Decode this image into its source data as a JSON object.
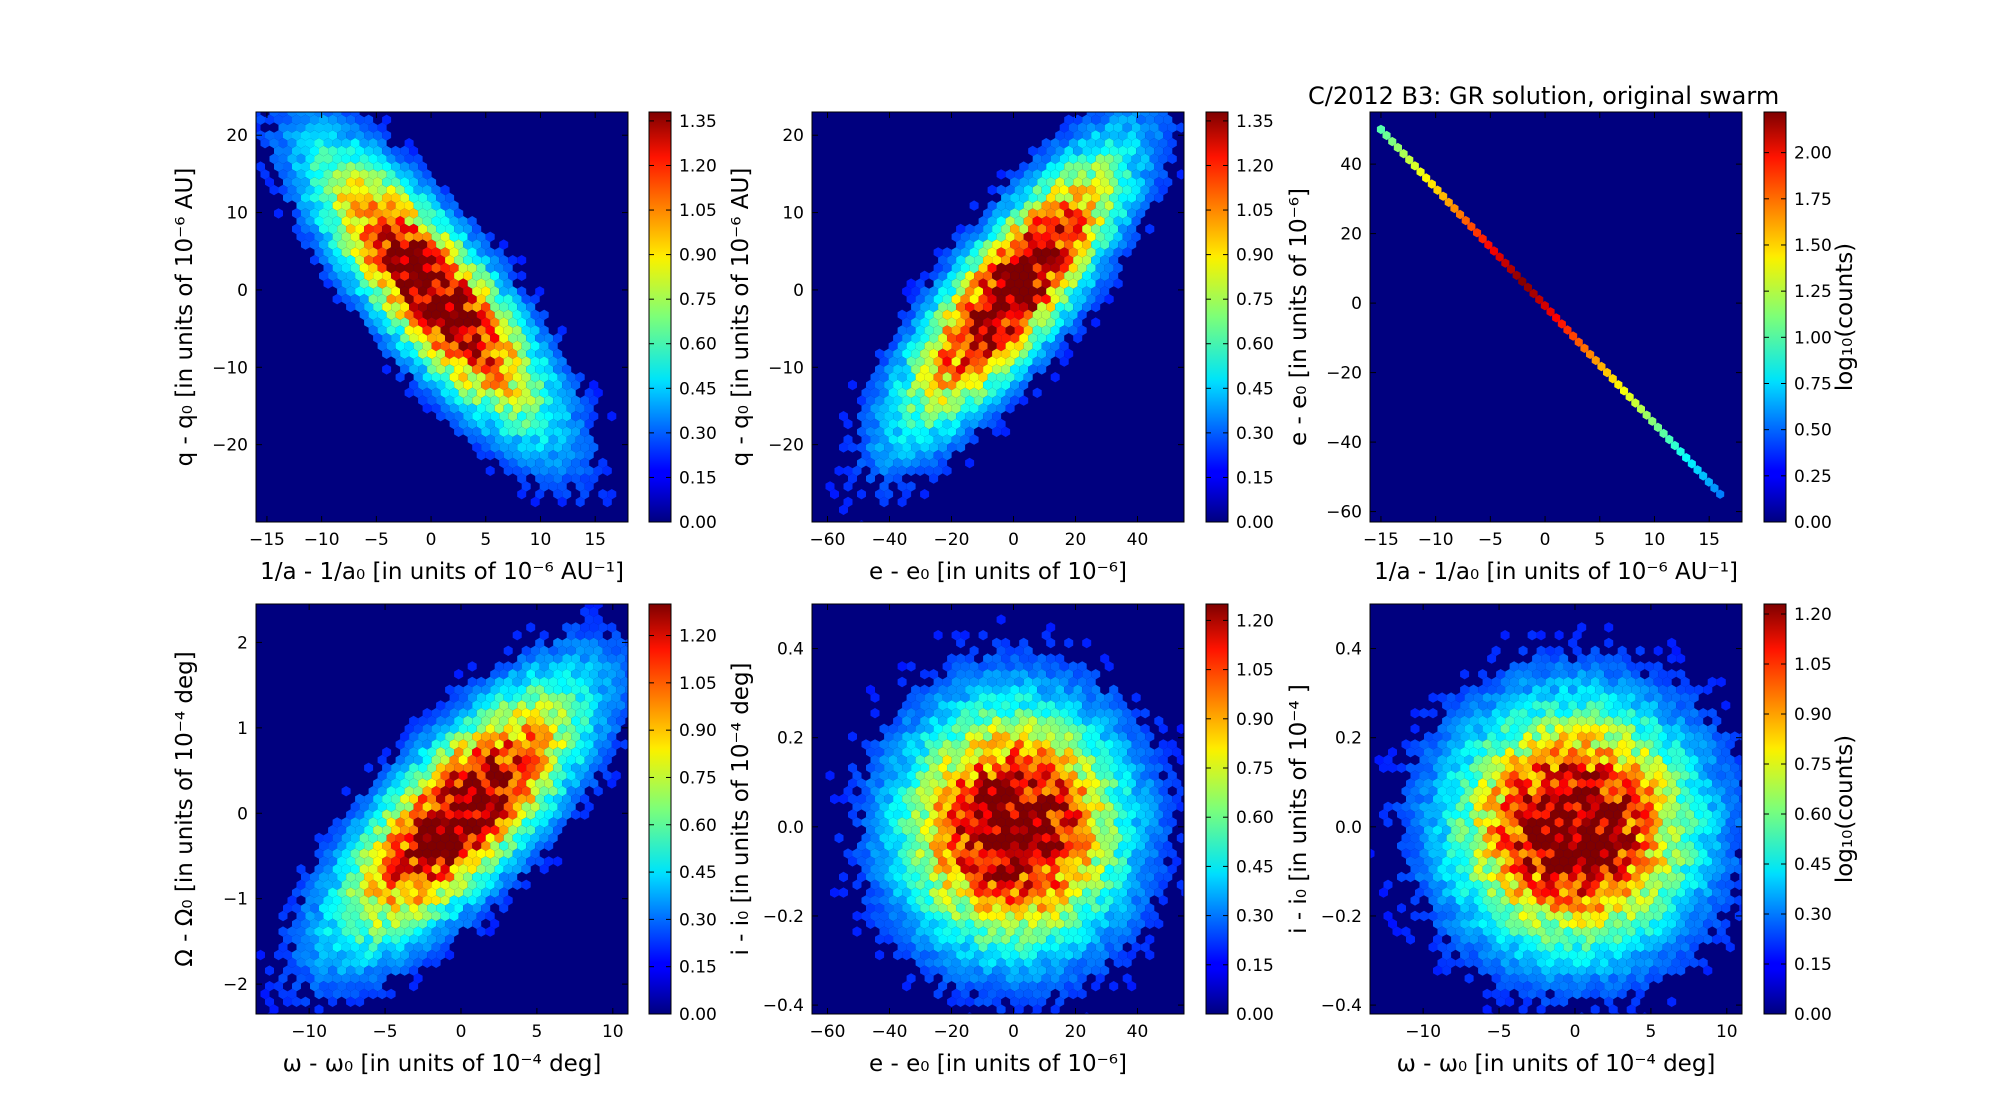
{
  "figure_title": "C/2012 B3:  GR solution, original swarm",
  "colors": {
    "background": "#00007f",
    "frame": "#000000"
  },
  "chart_data": [
    {
      "type": "heatmap",
      "panel": "top-left",
      "variant": "hexbin-density",
      "xlabel": "1/a - 1/a₀ [in units of 10⁻⁶ AU⁻¹]",
      "ylabel": "q - q₀ [in units of 10⁻⁶ AU]",
      "xlim": [
        -16,
        18
      ],
      "ylim": [
        -30,
        23
      ],
      "xticks": [
        -15,
        -10,
        -5,
        0,
        5,
        10,
        15
      ],
      "xtick_labels": [
        "−15",
        "−10",
        "−5",
        "0",
        "5",
        "10",
        "15"
      ],
      "yticks": [
        -20,
        -10,
        0,
        10,
        20
      ],
      "ytick_labels": [
        "−20",
        "−10",
        "0",
        "10",
        "20"
      ],
      "distribution": {
        "mean_x": 0,
        "mean_y": 0,
        "sd_x": 5,
        "sd_y": 8.5,
        "corr": -0.82
      },
      "colorbar": {
        "min": 0.0,
        "max": 1.38,
        "ticks": [
          "0.00",
          "0.15",
          "0.30",
          "0.45",
          "0.60",
          "0.75",
          "0.90",
          "1.05",
          "1.20",
          "1.35"
        ],
        "label": ""
      }
    },
    {
      "type": "heatmap",
      "panel": "top-middle",
      "variant": "hexbin-density",
      "xlabel": "e - e₀ [in units of 10⁻⁶]",
      "ylabel": "q - q₀ [in units of 10⁻⁶ AU]",
      "xlim": [
        -65,
        55
      ],
      "ylim": [
        -30,
        23
      ],
      "xticks": [
        -60,
        -40,
        -20,
        0,
        20,
        40
      ],
      "xtick_labels": [
        "−60",
        "−40",
        "−20",
        "0",
        "20",
        "40"
      ],
      "yticks": [
        -20,
        -10,
        0,
        10,
        20
      ],
      "ytick_labels": [
        "−20",
        "−10",
        "0",
        "10",
        "20"
      ],
      "distribution": {
        "mean_x": 0,
        "mean_y": 0,
        "sd_x": 17,
        "sd_y": 8.5,
        "corr": 0.82
      },
      "colorbar": {
        "min": 0.0,
        "max": 1.38,
        "ticks": [
          "0.00",
          "0.15",
          "0.30",
          "0.45",
          "0.60",
          "0.75",
          "0.90",
          "1.05",
          "1.20",
          "1.35"
        ],
        "label": ""
      }
    },
    {
      "type": "heatmap",
      "panel": "top-right",
      "variant": "hexbin-line",
      "xlabel": "1/a - 1/a₀ [in units of 10⁻⁶ AU⁻¹]",
      "ylabel": "e - e₀ [in units of 10⁻⁶]",
      "xlim": [
        -16,
        18
      ],
      "ylim": [
        -63,
        55
      ],
      "xticks": [
        -15,
        -10,
        -5,
        0,
        5,
        10,
        15
      ],
      "xtick_labels": [
        "−15",
        "−10",
        "−5",
        "0",
        "5",
        "10",
        "15"
      ],
      "yticks": [
        -60,
        -40,
        -20,
        0,
        20,
        40
      ],
      "ytick_labels": [
        "−60",
        "−40",
        "−20",
        "0",
        "20",
        "40"
      ],
      "line": {
        "x_start": -15,
        "y_start": 50,
        "x_end": 16,
        "y_end": -55
      },
      "colorbar": {
        "min": 0.0,
        "max": 2.22,
        "ticks": [
          "0.00",
          "0.25",
          "0.50",
          "0.75",
          "1.00",
          "1.25",
          "1.50",
          "1.75",
          "2.00"
        ],
        "label": "log₁₀(counts)"
      }
    },
    {
      "type": "heatmap",
      "panel": "bottom-left",
      "variant": "hexbin-density",
      "xlabel": "ω - ω₀ [in units of 10⁻⁴ deg]",
      "ylabel": "Ω - Ω₀ [in units of 10⁻⁴ deg]",
      "xlim": [
        -13.5,
        11
      ],
      "ylim": [
        -2.35,
        2.45
      ],
      "xticks": [
        -10,
        -5,
        0,
        5,
        10
      ],
      "xtick_labels": [
        "−10",
        "−5",
        "0",
        "5",
        "10"
      ],
      "yticks": [
        -2,
        -1,
        0,
        1,
        2
      ],
      "ytick_labels": [
        "−2",
        "−1",
        "0",
        "1",
        "2"
      ],
      "distribution": {
        "mean_x": 0,
        "mean_y": 0,
        "sd_x": 3.8,
        "sd_y": 0.72,
        "corr": 0.75
      },
      "colorbar": {
        "min": 0.0,
        "max": 1.3,
        "ticks": [
          "0.00",
          "0.15",
          "0.30",
          "0.45",
          "0.60",
          "0.75",
          "0.90",
          "1.05",
          "1.20"
        ],
        "label": ""
      }
    },
    {
      "type": "heatmap",
      "panel": "bottom-middle",
      "variant": "hexbin-density",
      "xlabel": "e - e₀ [in units of 10⁻⁶]",
      "ylabel": "i - i₀ [in units of 10⁻⁴ deg]",
      "xlim": [
        -65,
        55
      ],
      "ylim": [
        -0.42,
        0.5
      ],
      "xticks": [
        -60,
        -40,
        -20,
        0,
        20,
        40
      ],
      "xtick_labels": [
        "−60",
        "−40",
        "−20",
        "0",
        "20",
        "40"
      ],
      "yticks": [
        -0.4,
        -0.2,
        0.0,
        0.2,
        0.4
      ],
      "ytick_labels": [
        "−0.4",
        "−0.2",
        "0.0",
        "0.2",
        "0.4"
      ],
      "distribution": {
        "mean_x": 0,
        "mean_y": 0,
        "sd_x": 17,
        "sd_y": 0.13,
        "corr": 0.0
      },
      "colorbar": {
        "min": 0.0,
        "max": 1.25,
        "ticks": [
          "0.00",
          "0.15",
          "0.30",
          "0.45",
          "0.60",
          "0.75",
          "0.90",
          "1.05",
          "1.20"
        ],
        "label": ""
      }
    },
    {
      "type": "heatmap",
      "panel": "bottom-right",
      "variant": "hexbin-density",
      "xlabel": "ω - ω₀ [in units of 10⁻⁴ deg]",
      "ylabel": "i - i₀ [in units of 10⁻⁴ ]",
      "xlim": [
        -13.5,
        11
      ],
      "ylim": [
        -0.42,
        0.5
      ],
      "xticks": [
        -10,
        -5,
        0,
        5,
        10
      ],
      "xtick_labels": [
        "−10",
        "−5",
        "0",
        "5",
        "10"
      ],
      "yticks": [
        -0.4,
        -0.2,
        0.0,
        0.2,
        0.4
      ],
      "ytick_labels": [
        "−0.4",
        "−0.2",
        "0.0",
        "0.2",
        "0.4"
      ],
      "distribution": {
        "mean_x": 0,
        "mean_y": 0,
        "sd_x": 3.8,
        "sd_y": 0.13,
        "corr": 0.0
      },
      "colorbar": {
        "min": 0.0,
        "max": 1.23,
        "ticks": [
          "0.00",
          "0.15",
          "0.30",
          "0.45",
          "0.60",
          "0.75",
          "0.90",
          "1.05",
          "1.20"
        ],
        "label": "log₁₀(counts)"
      }
    }
  ]
}
